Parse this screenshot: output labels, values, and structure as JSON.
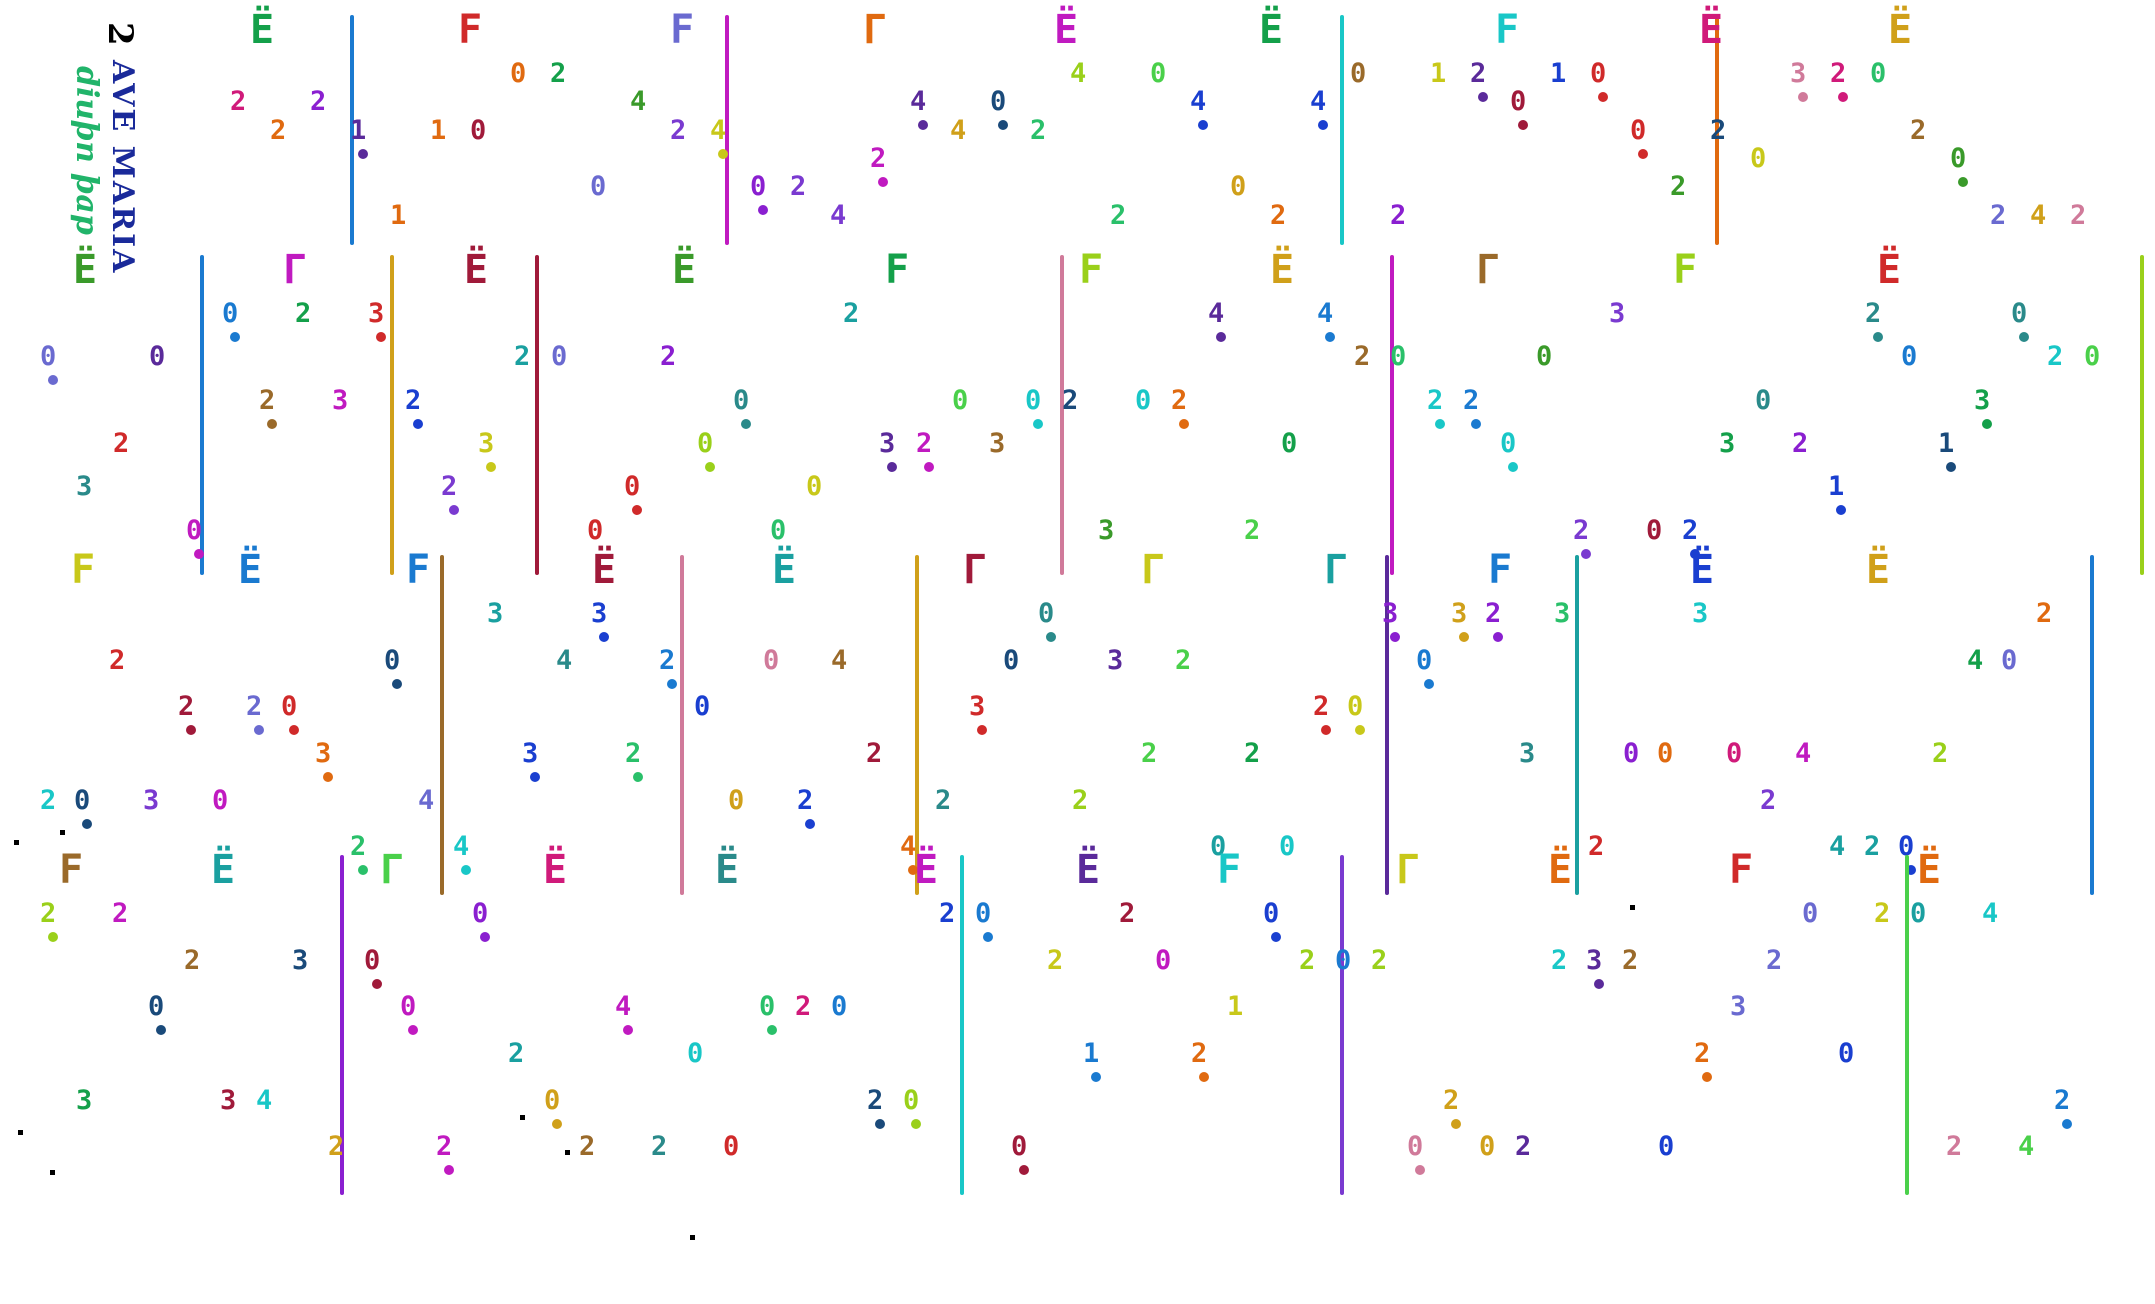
{
  "title": {
    "number": "2",
    "main": "AVE MARIA",
    "subtitle": "diuþn þap"
  },
  "staves": [
    {
      "row": 1,
      "marks": [
        "2",
        "2",
        "2",
        "1",
        "1",
        "1",
        "0",
        "0",
        "2",
        "0",
        "4",
        "2",
        "4",
        "0",
        "2",
        "4",
        "2",
        "4",
        "4",
        "0",
        "2",
        "4",
        "2",
        "0",
        "4",
        "0",
        "2",
        "4",
        "0",
        "2",
        "1",
        "2",
        "0",
        "1",
        "0",
        "0",
        "2",
        "2",
        "0",
        "3",
        "2",
        "0",
        "2",
        "0",
        "2",
        "4",
        "2"
      ]
    },
    {
      "row": 2,
      "marks": [
        "0",
        "3",
        "2",
        "0",
        "0",
        "0",
        "2",
        "2",
        "3",
        "3",
        "2",
        "2",
        "3",
        "2",
        "0",
        "0",
        "0",
        "2",
        "0",
        "0",
        "0",
        "0",
        "2",
        "3",
        "2",
        "0",
        "3",
        "0",
        "2",
        "3",
        "0",
        "2",
        "4",
        "2",
        "0",
        "4",
        "2",
        "0",
        "2",
        "2",
        "0",
        "0",
        "2",
        "3",
        "0",
        "2",
        "3",
        "0",
        "2",
        "1",
        "2",
        "0",
        "1",
        "3",
        "0",
        "2",
        "0"
      ]
    },
    {
      "row": 3,
      "marks": [
        "2",
        "0",
        "2",
        "3",
        "2",
        "0",
        "2",
        "0",
        "3",
        "2",
        "0",
        "4",
        "4",
        "3",
        "3",
        "4",
        "3",
        "2",
        "2",
        "0",
        "0",
        "0",
        "2",
        "4",
        "2",
        "4",
        "2",
        "3",
        "0",
        "0",
        "2",
        "3",
        "2",
        "2",
        "0",
        "2",
        "0",
        "2",
        "0",
        "3",
        "0",
        "3",
        "2",
        "3",
        "3",
        "2",
        "0",
        "0",
        "3",
        "0",
        "2",
        "4",
        "4",
        "2",
        "0",
        "2",
        "4",
        "0",
        "2"
      ]
    },
    {
      "row": 4,
      "marks": [
        "2",
        "3",
        "2",
        "0",
        "2",
        "3",
        "4",
        "3",
        "2",
        "0",
        "0",
        "2",
        "0",
        "2",
        "0",
        "2",
        "4",
        "2",
        "0",
        "0",
        "0",
        "2",
        "0",
        "2",
        "0",
        "2",
        "0",
        "0",
        "2",
        "1",
        "2",
        "0",
        "2",
        "1",
        "0",
        "2",
        "0",
        "2",
        "0",
        "2",
        "0",
        "2",
        "2",
        "3",
        "2",
        "0",
        "2",
        "3",
        "2",
        "0",
        "0",
        "2",
        "0",
        "2",
        "4",
        "4",
        "2"
      ]
    }
  ]
}
